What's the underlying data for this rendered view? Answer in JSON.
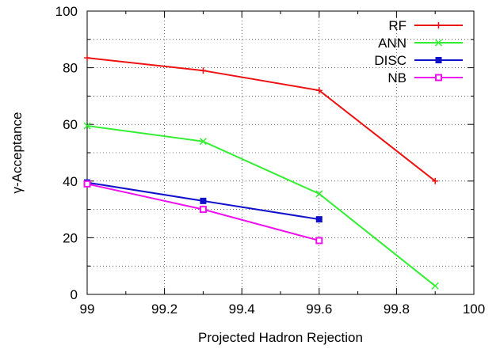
{
  "chart_data": {
    "type": "line",
    "xlabel": "Projected Hadron Rejection",
    "ylabel": "γ-Acceptance",
    "xlim": [
      99,
      100
    ],
    "ylim": [
      0,
      100
    ],
    "x_ticks": [
      "99",
      "99.2",
      "99.4",
      "99.6",
      "99.8",
      "100"
    ],
    "y_ticks": [
      "0",
      "20",
      "40",
      "60",
      "80",
      "100"
    ],
    "grid": true,
    "legend_position": "top-right",
    "series": [
      {
        "name": "RF",
        "color": "#ee1111",
        "marker": "plus",
        "x": [
          99.0,
          99.3,
          99.6,
          99.9
        ],
        "y": [
          83.5,
          79.0,
          72.0,
          40.0
        ]
      },
      {
        "name": "ANN",
        "color": "#33ee33",
        "marker": "x",
        "x": [
          99.0,
          99.3,
          99.6,
          99.9
        ],
        "y": [
          59.5,
          54.0,
          35.5,
          3.0
        ]
      },
      {
        "name": "DISC",
        "color": "#1111cc",
        "marker": "filled-square",
        "x": [
          99.0,
          99.3,
          99.6
        ],
        "y": [
          39.5,
          33.0,
          26.5
        ]
      },
      {
        "name": "NB",
        "color": "#ee11ee",
        "marker": "open-square",
        "x": [
          99.0,
          99.3,
          99.6
        ],
        "y": [
          39.0,
          30.0,
          19.0
        ]
      }
    ]
  }
}
